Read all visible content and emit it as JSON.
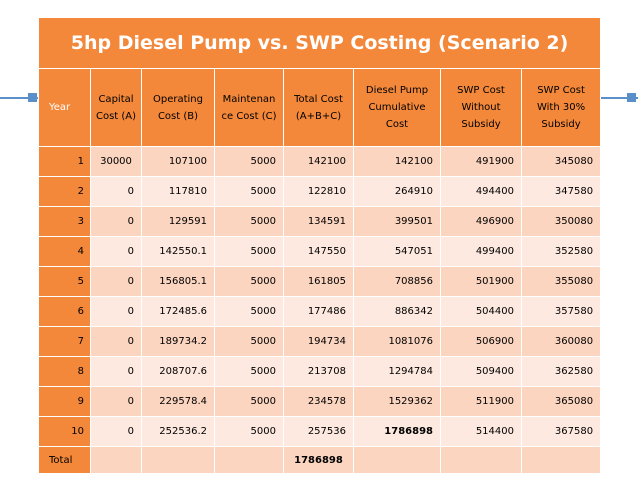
{
  "title": "5hp Diesel Pump vs. SWP Costing (Scenario 2)",
  "headers": {
    "year": "Year",
    "capital": [
      "Capital",
      "Cost (A)"
    ],
    "operating": [
      "Operating",
      "Cost (B)"
    ],
    "maintenance": [
      "Maintenan",
      "ce Cost (C)"
    ],
    "total": [
      "Total Cost",
      "(A+B+C)"
    ],
    "diesel_cum": [
      "Diesel Pump",
      "Cumulative",
      "Cost"
    ],
    "swp_without": [
      "SWP Cost",
      "Without",
      "Subsidy"
    ],
    "swp_with": [
      "SWP Cost",
      "With 30%",
      "Subsidy"
    ]
  },
  "rows": [
    {
      "year": "1",
      "capital": "30000",
      "operating": "107100",
      "maintenance": "5000",
      "total": "142100",
      "diesel_cum": "142100",
      "swp_without": "491900",
      "swp_with": "345080"
    },
    {
      "year": "2",
      "capital": "0",
      "operating": "117810",
      "maintenance": "5000",
      "total": "122810",
      "diesel_cum": "264910",
      "swp_without": "494400",
      "swp_with": "347580"
    },
    {
      "year": "3",
      "capital": "0",
      "operating": "129591",
      "maintenance": "5000",
      "total": "134591",
      "diesel_cum": "399501",
      "swp_without": "496900",
      "swp_with": "350080"
    },
    {
      "year": "4",
      "capital": "0",
      "operating": "142550.1",
      "maintenance": "5000",
      "total": "147550",
      "diesel_cum": "547051",
      "swp_without": "499400",
      "swp_with": "352580"
    },
    {
      "year": "5",
      "capital": "0",
      "operating": "156805.1",
      "maintenance": "5000",
      "total": "161805",
      "diesel_cum": "708856",
      "swp_without": "501900",
      "swp_with": "355080"
    },
    {
      "year": "6",
      "capital": "0",
      "operating": "172485.6",
      "maintenance": "5000",
      "total": "177486",
      "diesel_cum": "886342",
      "swp_without": "504400",
      "swp_with": "357580"
    },
    {
      "year": "7",
      "capital": "0",
      "operating": "189734.2",
      "maintenance": "5000",
      "total": "194734",
      "diesel_cum": "1081076",
      "swp_without": "506900",
      "swp_with": "360080"
    },
    {
      "year": "8",
      "capital": "0",
      "operating": "208707.6",
      "maintenance": "5000",
      "total": "213708",
      "diesel_cum": "1294784",
      "swp_without": "509400",
      "swp_with": "362580"
    },
    {
      "year": "9",
      "capital": "0",
      "operating": "229578.4",
      "maintenance": "5000",
      "total": "234578",
      "diesel_cum": "1529362",
      "swp_without": "511900",
      "swp_with": "365080"
    },
    {
      "year": "10",
      "capital": "0",
      "operating": "252536.2",
      "maintenance": "5000",
      "total": "257536",
      "diesel_cum": "1786898",
      "swp_without": "514400",
      "swp_with": "367580"
    }
  ],
  "total_row": {
    "label": "Total",
    "total": "1786898"
  },
  "colors": {
    "header_orange": "#f3883a",
    "row_dark": "#fbd5c0",
    "row_light": "#fde9df",
    "accent_blue": "#5b8fc9"
  }
}
